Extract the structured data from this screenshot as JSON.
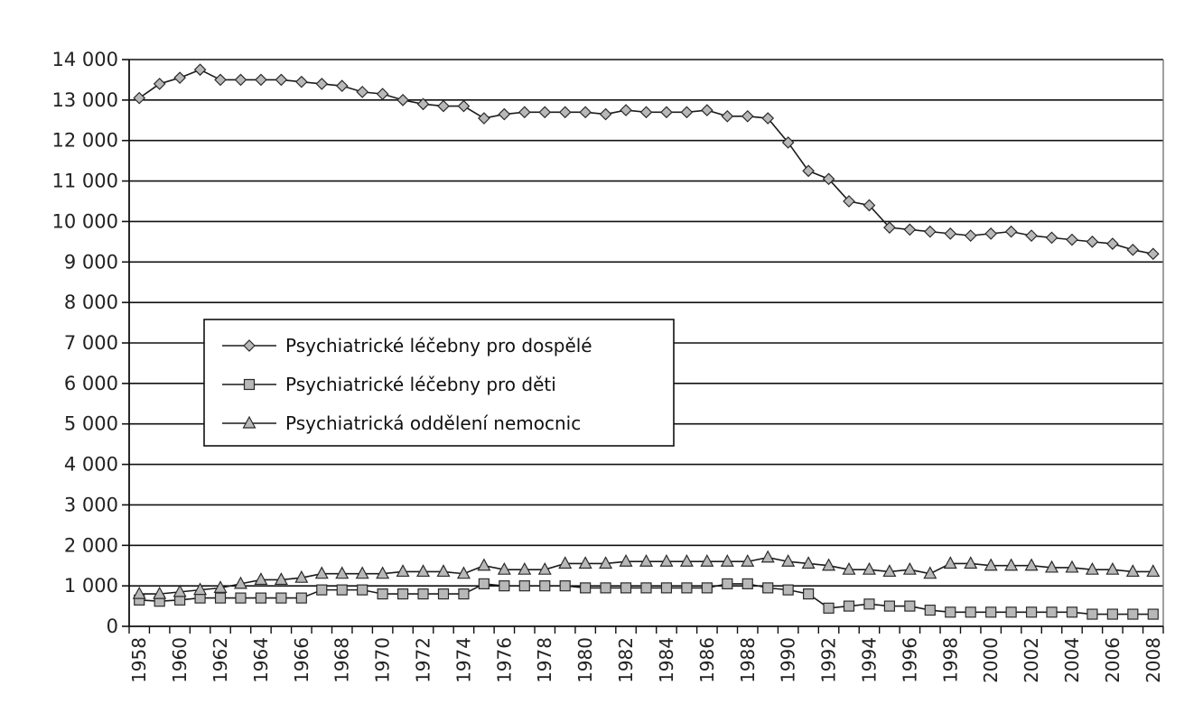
{
  "chart_data": {
    "type": "line",
    "title": "",
    "xlabel": "",
    "ylabel": "",
    "x": [
      1958,
      1959,
      1960,
      1961,
      1962,
      1963,
      1964,
      1965,
      1966,
      1967,
      1968,
      1969,
      1970,
      1971,
      1972,
      1973,
      1974,
      1975,
      1976,
      1977,
      1978,
      1979,
      1980,
      1981,
      1982,
      1983,
      1984,
      1985,
      1986,
      1987,
      1988,
      1989,
      1990,
      1991,
      1992,
      1993,
      1994,
      1995,
      1996,
      1997,
      1998,
      1999,
      2000,
      2001,
      2002,
      2003,
      2004,
      2005,
      2006,
      2007,
      2008
    ],
    "x_tick_labels": [
      "1958",
      "1960",
      "1962",
      "1964",
      "1966",
      "1968",
      "1970",
      "1972",
      "1974",
      "1976",
      "1978",
      "1980",
      "1982",
      "1984",
      "1986",
      "1988",
      "1990",
      "1992",
      "1994",
      "1996",
      "1998",
      "2000",
      "2002",
      "2004",
      "2006",
      "2008"
    ],
    "ylim": [
      0,
      14000
    ],
    "y_tick_labels": [
      "0",
      "1 000",
      "2 000",
      "3 000",
      "4 000",
      "5 000",
      "6 000",
      "7 000",
      "8 000",
      "9 000",
      "10 000",
      "11 000",
      "12 000",
      "13 000",
      "14 000"
    ],
    "grid": "horizontal",
    "legend_placement": "middle-left",
    "series": [
      {
        "name": "Psychiatrické léčebny pro dospělé",
        "marker": "diamond",
        "values": [
          13050,
          13400,
          13550,
          13750,
          13500,
          13500,
          13500,
          13500,
          13450,
          13400,
          13350,
          13200,
          13150,
          13000,
          12900,
          12850,
          12850,
          12550,
          12650,
          12700,
          12700,
          12700,
          12700,
          12650,
          12750,
          12700,
          12700,
          12700,
          12750,
          12600,
          12600,
          12550,
          11950,
          11250,
          11050,
          10500,
          10400,
          9850,
          9800,
          9750,
          9700,
          9650,
          9700,
          9750,
          9650,
          9600,
          9550,
          9500,
          9450,
          9300,
          9200
        ]
      },
      {
        "name": "Psychiatrické léčebny pro děti",
        "marker": "square",
        "values": [
          650,
          620,
          650,
          700,
          700,
          700,
          700,
          700,
          700,
          900,
          900,
          900,
          800,
          800,
          800,
          800,
          800,
          1050,
          1000,
          1000,
          1000,
          1000,
          950,
          950,
          950,
          950,
          950,
          950,
          950,
          1050,
          1050,
          950,
          900,
          800,
          450,
          500,
          550,
          500,
          500,
          400,
          350,
          350,
          350,
          350,
          350,
          350,
          350,
          300,
          300,
          300,
          300
        ]
      },
      {
        "name": "Psychiatrická oddělení nemocnic",
        "marker": "triangle",
        "values": [
          800,
          800,
          850,
          900,
          950,
          1050,
          1150,
          1150,
          1200,
          1300,
          1300,
          1300,
          1300,
          1350,
          1350,
          1350,
          1300,
          1500,
          1400,
          1400,
          1400,
          1550,
          1550,
          1550,
          1600,
          1600,
          1600,
          1600,
          1600,
          1600,
          1600,
          1700,
          1600,
          1550,
          1500,
          1400,
          1400,
          1350,
          1400,
          1300,
          1550,
          1550,
          1500,
          1500,
          1500,
          1450,
          1450,
          1400,
          1400,
          1350,
          1350
        ]
      }
    ],
    "colors": {
      "marker_fill": "#b8b8b8",
      "marker_stroke": "#2a2a2a",
      "line": "#1a1a1a",
      "gridline": "#111111",
      "axis": "#111111"
    }
  }
}
